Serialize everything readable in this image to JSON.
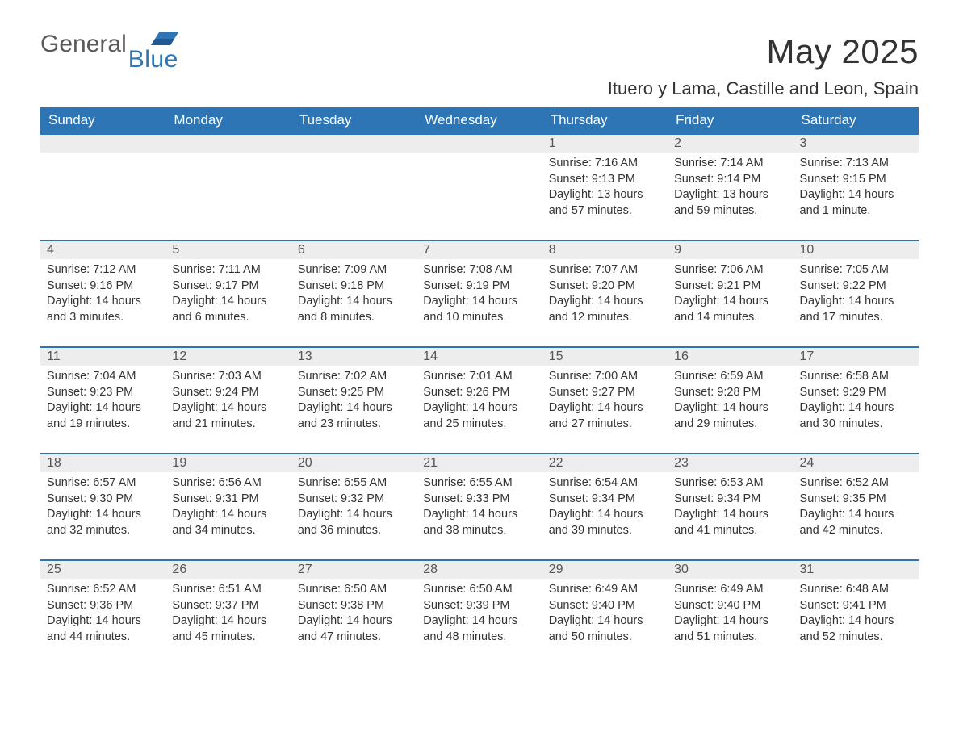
{
  "brand": {
    "text_general": "General",
    "text_blue": "Blue",
    "flag_color": "#2e75b6",
    "general_color": "#5a5a5a"
  },
  "header": {
    "month_title": "May 2025",
    "location": "Ituero y Lama, Castille and Leon, Spain"
  },
  "calendar": {
    "header_bg": "#2e75b6",
    "header_fg": "#ffffff",
    "row_divider_color": "#2e75b6",
    "daynum_bg": "#ededed",
    "text_color": "#333333",
    "weekdays": [
      "Sunday",
      "Monday",
      "Tuesday",
      "Wednesday",
      "Thursday",
      "Friday",
      "Saturday"
    ],
    "weeks": [
      [
        {
          "empty": true
        },
        {
          "empty": true
        },
        {
          "empty": true
        },
        {
          "empty": true
        },
        {
          "day": "1",
          "sunrise": "Sunrise: 7:16 AM",
          "sunset": "Sunset: 9:13 PM",
          "daylight": "Daylight: 13 hours and 57 minutes."
        },
        {
          "day": "2",
          "sunrise": "Sunrise: 7:14 AM",
          "sunset": "Sunset: 9:14 PM",
          "daylight": "Daylight: 13 hours and 59 minutes."
        },
        {
          "day": "3",
          "sunrise": "Sunrise: 7:13 AM",
          "sunset": "Sunset: 9:15 PM",
          "daylight": "Daylight: 14 hours and 1 minute."
        }
      ],
      [
        {
          "day": "4",
          "sunrise": "Sunrise: 7:12 AM",
          "sunset": "Sunset: 9:16 PM",
          "daylight": "Daylight: 14 hours and 3 minutes."
        },
        {
          "day": "5",
          "sunrise": "Sunrise: 7:11 AM",
          "sunset": "Sunset: 9:17 PM",
          "daylight": "Daylight: 14 hours and 6 minutes."
        },
        {
          "day": "6",
          "sunrise": "Sunrise: 7:09 AM",
          "sunset": "Sunset: 9:18 PM",
          "daylight": "Daylight: 14 hours and 8 minutes."
        },
        {
          "day": "7",
          "sunrise": "Sunrise: 7:08 AM",
          "sunset": "Sunset: 9:19 PM",
          "daylight": "Daylight: 14 hours and 10 minutes."
        },
        {
          "day": "8",
          "sunrise": "Sunrise: 7:07 AM",
          "sunset": "Sunset: 9:20 PM",
          "daylight": "Daylight: 14 hours and 12 minutes."
        },
        {
          "day": "9",
          "sunrise": "Sunrise: 7:06 AM",
          "sunset": "Sunset: 9:21 PM",
          "daylight": "Daylight: 14 hours and 14 minutes."
        },
        {
          "day": "10",
          "sunrise": "Sunrise: 7:05 AM",
          "sunset": "Sunset: 9:22 PM",
          "daylight": "Daylight: 14 hours and 17 minutes."
        }
      ],
      [
        {
          "day": "11",
          "sunrise": "Sunrise: 7:04 AM",
          "sunset": "Sunset: 9:23 PM",
          "daylight": "Daylight: 14 hours and 19 minutes."
        },
        {
          "day": "12",
          "sunrise": "Sunrise: 7:03 AM",
          "sunset": "Sunset: 9:24 PM",
          "daylight": "Daylight: 14 hours and 21 minutes."
        },
        {
          "day": "13",
          "sunrise": "Sunrise: 7:02 AM",
          "sunset": "Sunset: 9:25 PM",
          "daylight": "Daylight: 14 hours and 23 minutes."
        },
        {
          "day": "14",
          "sunrise": "Sunrise: 7:01 AM",
          "sunset": "Sunset: 9:26 PM",
          "daylight": "Daylight: 14 hours and 25 minutes."
        },
        {
          "day": "15",
          "sunrise": "Sunrise: 7:00 AM",
          "sunset": "Sunset: 9:27 PM",
          "daylight": "Daylight: 14 hours and 27 minutes."
        },
        {
          "day": "16",
          "sunrise": "Sunrise: 6:59 AM",
          "sunset": "Sunset: 9:28 PM",
          "daylight": "Daylight: 14 hours and 29 minutes."
        },
        {
          "day": "17",
          "sunrise": "Sunrise: 6:58 AM",
          "sunset": "Sunset: 9:29 PM",
          "daylight": "Daylight: 14 hours and 30 minutes."
        }
      ],
      [
        {
          "day": "18",
          "sunrise": "Sunrise: 6:57 AM",
          "sunset": "Sunset: 9:30 PM",
          "daylight": "Daylight: 14 hours and 32 minutes."
        },
        {
          "day": "19",
          "sunrise": "Sunrise: 6:56 AM",
          "sunset": "Sunset: 9:31 PM",
          "daylight": "Daylight: 14 hours and 34 minutes."
        },
        {
          "day": "20",
          "sunrise": "Sunrise: 6:55 AM",
          "sunset": "Sunset: 9:32 PM",
          "daylight": "Daylight: 14 hours and 36 minutes."
        },
        {
          "day": "21",
          "sunrise": "Sunrise: 6:55 AM",
          "sunset": "Sunset: 9:33 PM",
          "daylight": "Daylight: 14 hours and 38 minutes."
        },
        {
          "day": "22",
          "sunrise": "Sunrise: 6:54 AM",
          "sunset": "Sunset: 9:34 PM",
          "daylight": "Daylight: 14 hours and 39 minutes."
        },
        {
          "day": "23",
          "sunrise": "Sunrise: 6:53 AM",
          "sunset": "Sunset: 9:34 PM",
          "daylight": "Daylight: 14 hours and 41 minutes."
        },
        {
          "day": "24",
          "sunrise": "Sunrise: 6:52 AM",
          "sunset": "Sunset: 9:35 PM",
          "daylight": "Daylight: 14 hours and 42 minutes."
        }
      ],
      [
        {
          "day": "25",
          "sunrise": "Sunrise: 6:52 AM",
          "sunset": "Sunset: 9:36 PM",
          "daylight": "Daylight: 14 hours and 44 minutes."
        },
        {
          "day": "26",
          "sunrise": "Sunrise: 6:51 AM",
          "sunset": "Sunset: 9:37 PM",
          "daylight": "Daylight: 14 hours and 45 minutes."
        },
        {
          "day": "27",
          "sunrise": "Sunrise: 6:50 AM",
          "sunset": "Sunset: 9:38 PM",
          "daylight": "Daylight: 14 hours and 47 minutes."
        },
        {
          "day": "28",
          "sunrise": "Sunrise: 6:50 AM",
          "sunset": "Sunset: 9:39 PM",
          "daylight": "Daylight: 14 hours and 48 minutes."
        },
        {
          "day": "29",
          "sunrise": "Sunrise: 6:49 AM",
          "sunset": "Sunset: 9:40 PM",
          "daylight": "Daylight: 14 hours and 50 minutes."
        },
        {
          "day": "30",
          "sunrise": "Sunrise: 6:49 AM",
          "sunset": "Sunset: 9:40 PM",
          "daylight": "Daylight: 14 hours and 51 minutes."
        },
        {
          "day": "31",
          "sunrise": "Sunrise: 6:48 AM",
          "sunset": "Sunset: 9:41 PM",
          "daylight": "Daylight: 14 hours and 52 minutes."
        }
      ]
    ]
  }
}
